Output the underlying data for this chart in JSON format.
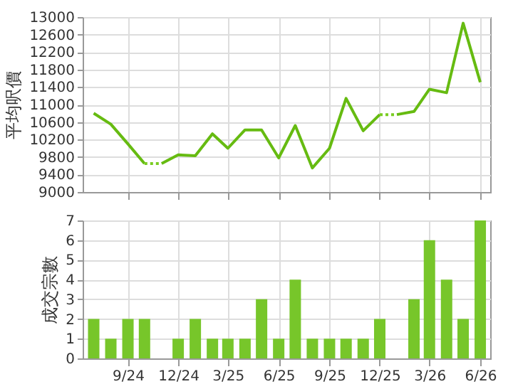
{
  "chart_data": [
    {
      "type": "line",
      "ylabel": "平均呎價",
      "x": [
        "2024-07",
        "2024-08",
        "2024-09",
        "2024-10",
        "2024-11",
        "2024-12",
        "2025-01",
        "2025-02",
        "2025-03",
        "2025-04",
        "2025-05",
        "2025-06",
        "2025-07",
        "2025-08",
        "2025-09",
        "2025-10",
        "2025-11",
        "2025-12",
        "2026-01",
        "2026-02",
        "2026-03",
        "2026-04",
        "2026-05",
        "2026-06"
      ],
      "series": [
        {
          "color": "#66bb11",
          "line_style": "solid",
          "values": [
            10800,
            10550,
            10100,
            9650,
            9650,
            9850,
            9830,
            10330,
            10000,
            10420,
            10420,
            9780,
            10520,
            9550,
            10000,
            11140,
            10400,
            10770,
            10770,
            10840,
            11350,
            11270,
            12860,
            11510
          ]
        },
        {
          "color": "#7acc22",
          "line_style": "dotted",
          "values": [
            null,
            null,
            null,
            9650,
            9650,
            null,
            null,
            null,
            null,
            null,
            null,
            null,
            null,
            null,
            null,
            null,
            null,
            10770,
            10770,
            null,
            null,
            null,
            null,
            null
          ]
        }
      ],
      "xlim": [
        "2024-06-11",
        "2026-06-19"
      ],
      "xticks": [
        {
          "value": "2024-09",
          "label": null
        },
        {
          "value": "2024-12",
          "label": null
        },
        {
          "value": "2025-03",
          "label": null
        },
        {
          "value": "2025-06",
          "label": null
        },
        {
          "value": "2025-09",
          "label": null
        },
        {
          "value": "2025-12",
          "label": null
        },
        {
          "value": "2026-03",
          "label": null
        },
        {
          "value": "2026-06",
          "label": null
        }
      ],
      "ylim": [
        9000,
        13000
      ],
      "yticks": [
        9000,
        9400,
        9800,
        10200,
        10600,
        11000,
        11400,
        11800,
        12200,
        12600,
        13000
      ],
      "grid": true,
      "tick_labels": "y"
    },
    {
      "type": "bar",
      "ylabel": "成交宗數",
      "x": [
        "2024-07",
        "2024-08",
        "2024-09",
        "2024-10",
        "2024-11",
        "2024-12",
        "2025-01",
        "2025-02",
        "2025-03",
        "2025-04",
        "2025-05",
        "2025-06",
        "2025-07",
        "2025-08",
        "2025-09",
        "2025-10",
        "2025-11",
        "2025-12",
        "2026-01",
        "2026-02",
        "2026-03",
        "2026-04",
        "2026-05",
        "2026-06"
      ],
      "series": [
        {
          "color": "#77c62a",
          "values": [
            2,
            1,
            2,
            2,
            0,
            1,
            2,
            1,
            1,
            1,
            3,
            1,
            4,
            1,
            1,
            1,
            1,
            2,
            0,
            3,
            6,
            4,
            2,
            7
          ]
        }
      ],
      "xlim": [
        "2024-06-11",
        "2026-06-19"
      ],
      "xticks": [
        {
          "value": "2024-09",
          "label": "9/24"
        },
        {
          "value": "2024-12",
          "label": "12/24"
        },
        {
          "value": "2025-03",
          "label": "3/25"
        },
        {
          "value": "2025-06",
          "label": "6/25"
        },
        {
          "value": "2025-09",
          "label": "9/25"
        },
        {
          "value": "2025-12",
          "label": "12/25"
        },
        {
          "value": "2026-03",
          "label": "3/26"
        },
        {
          "value": "2026-06",
          "label": "6/26"
        }
      ],
      "ylim": [
        0,
        7
      ],
      "yticks": [
        0,
        1,
        2,
        3,
        4,
        5,
        6,
        7
      ],
      "grid": true
    }
  ]
}
